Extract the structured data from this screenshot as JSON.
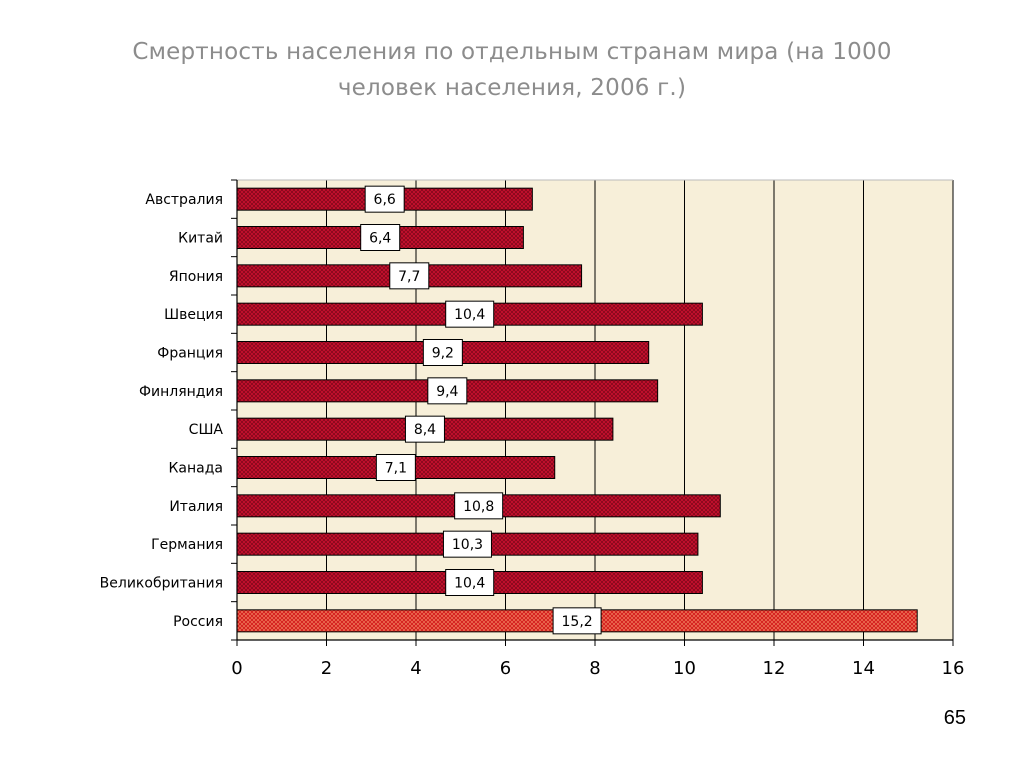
{
  "title_lines": [
    "Смертность населения по отдельным странам мира (на 1000",
    "человек населения, 2006 г.)"
  ],
  "page_number": "65",
  "chart_data": {
    "type": "bar",
    "orientation": "horizontal",
    "categories": [
      "Австралия",
      "Китай",
      "Япония",
      "Швеция",
      "Франция",
      "Финляндия",
      "США",
      "Канада",
      "Италия",
      "Германия",
      "Великобритания",
      "Россия"
    ],
    "values": [
      6.6,
      6.4,
      7.7,
      10.4,
      9.2,
      9.4,
      8.4,
      7.1,
      10.8,
      10.3,
      10.4,
      15.2
    ],
    "value_labels": [
      "6,6",
      "6,4",
      "7,7",
      "10,4",
      "9,2",
      "9,4",
      "8,4",
      "7,1",
      "10,8",
      "10,3",
      "10,4",
      "15,2"
    ],
    "highlight_category": "Россия",
    "xlim": [
      0,
      16
    ],
    "xticks": [
      0,
      2,
      4,
      6,
      8,
      10,
      12,
      14,
      16
    ],
    "grid": true,
    "colors": {
      "bar": "#c8102e",
      "highlight": "#e8453c",
      "plot_bg": "#f7efd9",
      "grid": "#000000"
    }
  }
}
